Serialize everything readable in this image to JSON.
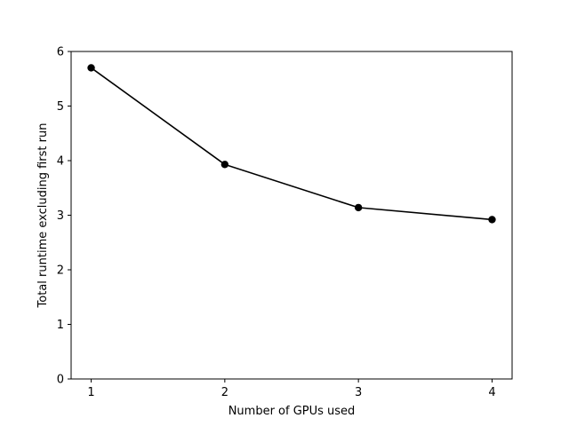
{
  "chart_data": {
    "type": "line",
    "title": "",
    "xlabel": "Number of GPUs used",
    "ylabel": "Total runtime excluding first run",
    "x": [
      1,
      2,
      3,
      4
    ],
    "series": [
      {
        "values": [
          5.7,
          3.93,
          3.14,
          2.92
        ],
        "color": "#000000",
        "marker": "circle"
      }
    ],
    "xticks": [
      1,
      2,
      3,
      4
    ],
    "xtick_labels": [
      "1",
      "2",
      "3",
      "4"
    ],
    "yticks": [
      0,
      1,
      2,
      3,
      4,
      5,
      6
    ],
    "ytick_labels": [
      "0",
      "1",
      "2",
      "3",
      "4",
      "5",
      "6"
    ],
    "xlim": [
      0.85,
      4.15
    ],
    "ylim": [
      0,
      6
    ],
    "grid": false,
    "legend": "none"
  }
}
